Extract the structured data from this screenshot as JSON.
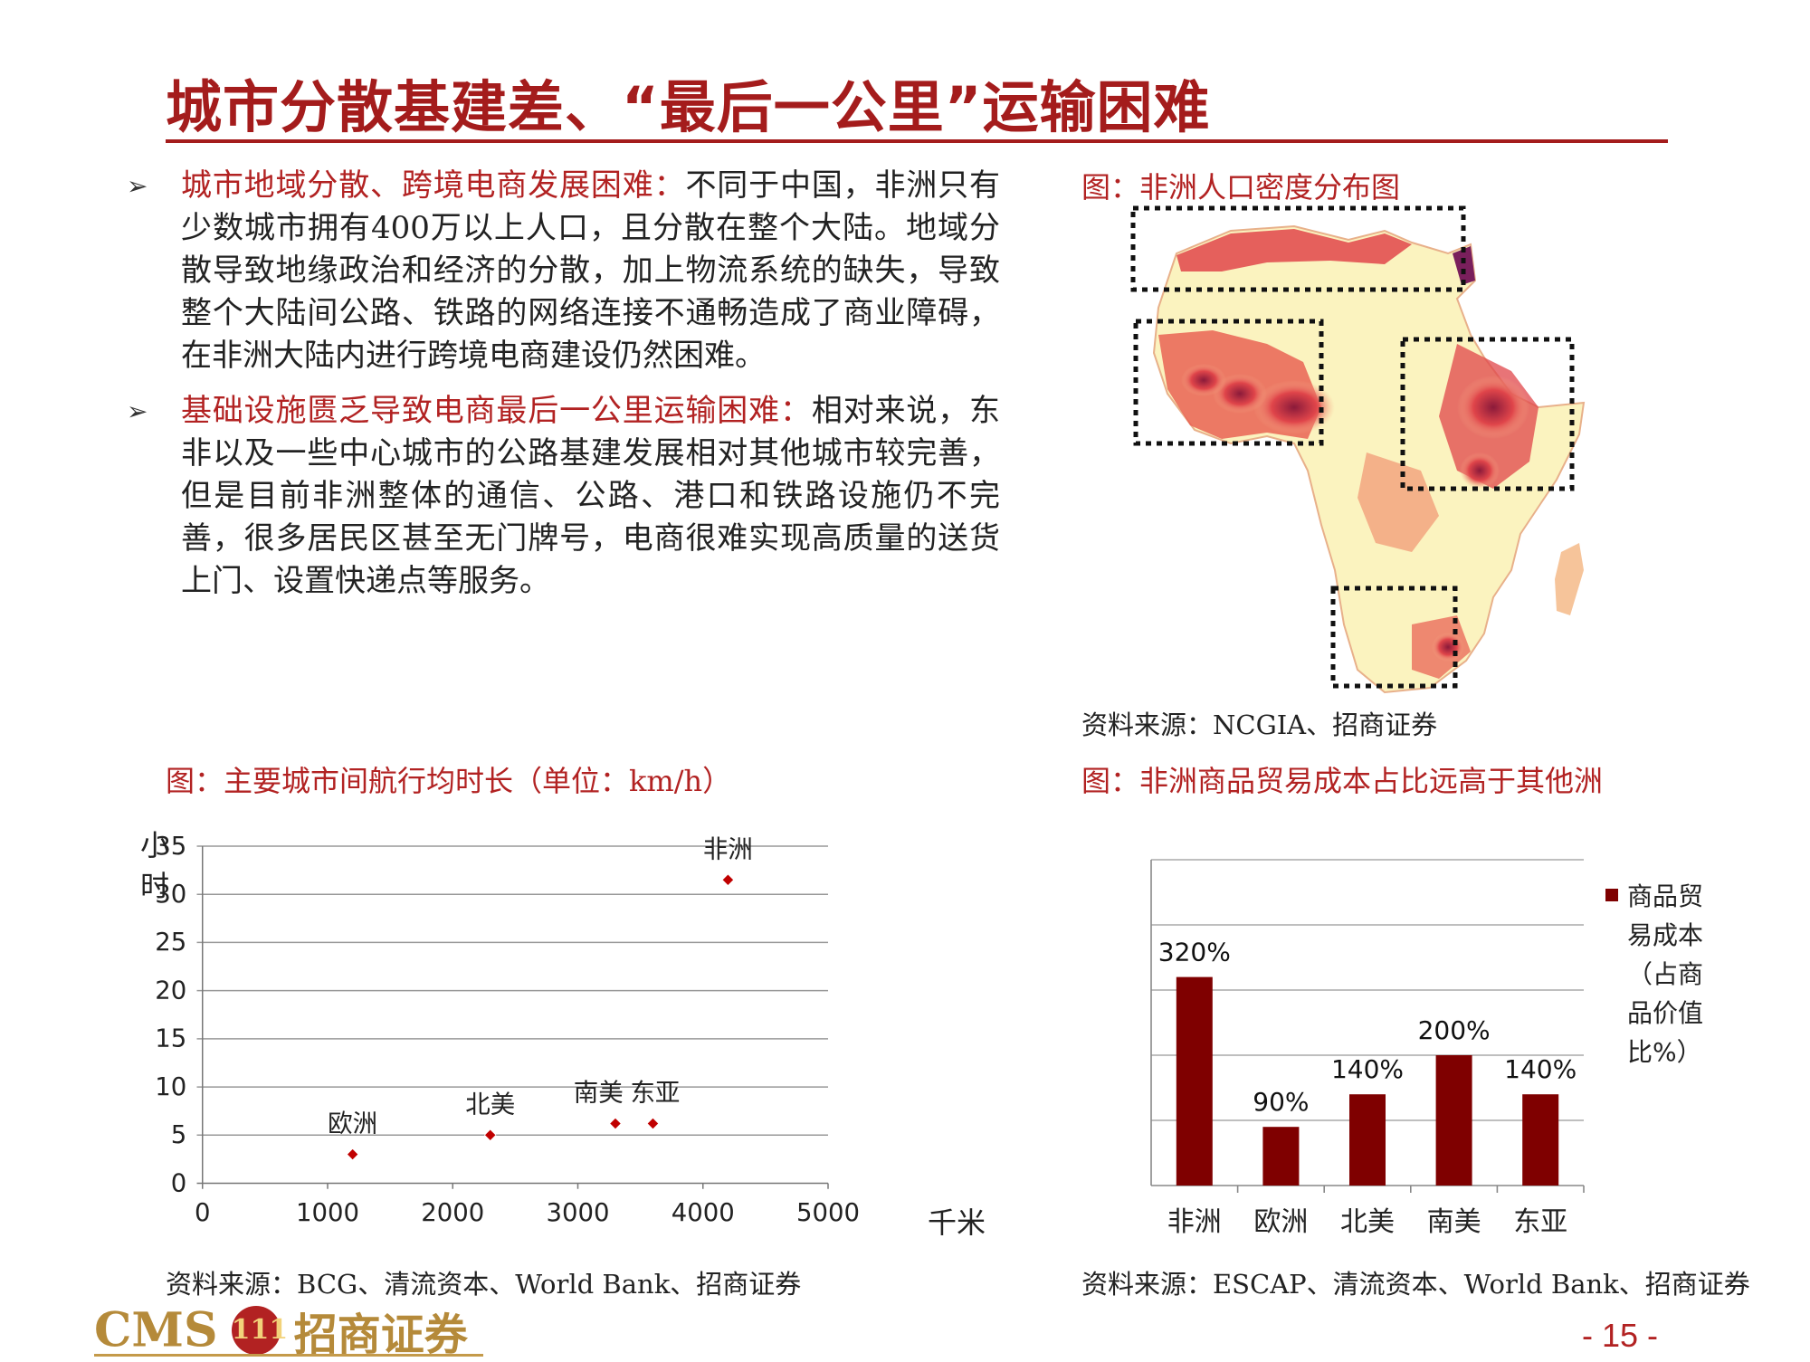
{
  "title": "城市分散基建差、“最后一公里”运输困难",
  "bullets": [
    {
      "lead": "城市地域分散、跨境电商发展困难：",
      "body": "不同于中国，非洲只有少数城市拥有400万以上人口，且分散在整个大陆。地域分散导致地缘政治和经济的分散，加上物流系统的缺失，导致整个大陆间公路、铁路的网络连接不通畅造成了商业障碍，在非洲大陆内进行跨境电商建设仍然困难。"
    },
    {
      "lead": "基础设施匮乏导致电商最后一公里运输困难：",
      "body": "相对来说，东非以及一些中心城市的公路基建发展相对其他城市较完善，但是目前非洲整体的通信、公路、港口和铁路设施仍不完善，很多居民区甚至无门牌号，电商很难实现高质量的送货上门、设置快递点等服务。"
    }
  ],
  "map_figure": {
    "caption": "图：非洲人口密度分布图",
    "source": "资料来源：NCGIA、招商证券"
  },
  "scatter_figure": {
    "caption": "图：主要城市间航行均时长（单位：km/h）",
    "source": "资料来源：BCG、清流资本、World Bank、招商证券"
  },
  "bar_figure": {
    "caption": "图：非洲商品贸易成本占比远高于其他洲",
    "source": "资料来源：ESCAP、清流资本、World Bank、招商证券"
  },
  "chart_data": [
    {
      "type": "scatter",
      "title": "",
      "xlabel": "千米",
      "ylabel": "小时",
      "xlim": [
        0,
        5000
      ],
      "ylim": [
        0,
        35
      ],
      "x_ticks": [
        "0",
        "1000",
        "2000",
        "3000",
        "4000",
        "5000"
      ],
      "y_ticks": [
        "0",
        "5",
        "10",
        "15",
        "20",
        "25",
        "30",
        "35"
      ],
      "grid": "horizontal",
      "points": [
        {
          "label": "欧洲",
          "x": 1200,
          "y": 3
        },
        {
          "label": "北美",
          "x": 2300,
          "y": 5
        },
        {
          "label": "南美",
          "x": 3300,
          "y": 6.2
        },
        {
          "label": "东亚",
          "x": 3600,
          "y": 6.2
        },
        {
          "label": "非洲",
          "x": 4200,
          "y": 31.5
        }
      ],
      "marker_color": "#c00000"
    },
    {
      "type": "bar",
      "title": "",
      "categories": [
        "非洲",
        "欧洲",
        "北美",
        "南美",
        "东亚"
      ],
      "values": [
        320,
        90,
        140,
        200,
        140
      ],
      "data_labels": [
        "320%",
        "90%",
        "140%",
        "200%",
        "140%"
      ],
      "series": [
        {
          "name": "商品贸易成本（占商品价值比%）",
          "values": [
            320,
            90,
            140,
            200,
            140
          ]
        }
      ],
      "legend_lines": [
        "商品贸",
        "易成本",
        "（占商",
        "品价值",
        "比%）"
      ],
      "legend_position": "right",
      "grid": "horizontal",
      "bar_color": "#7f0000"
    }
  ],
  "page_number": "- 15 -",
  "logo": {
    "latin": "CMS",
    "badge": "111",
    "chinese": "招商证券"
  },
  "colors": {
    "accent": "#a41c1c",
    "bar": "#7f0000",
    "marker": "#c00000",
    "gold": "#b58a3a"
  }
}
